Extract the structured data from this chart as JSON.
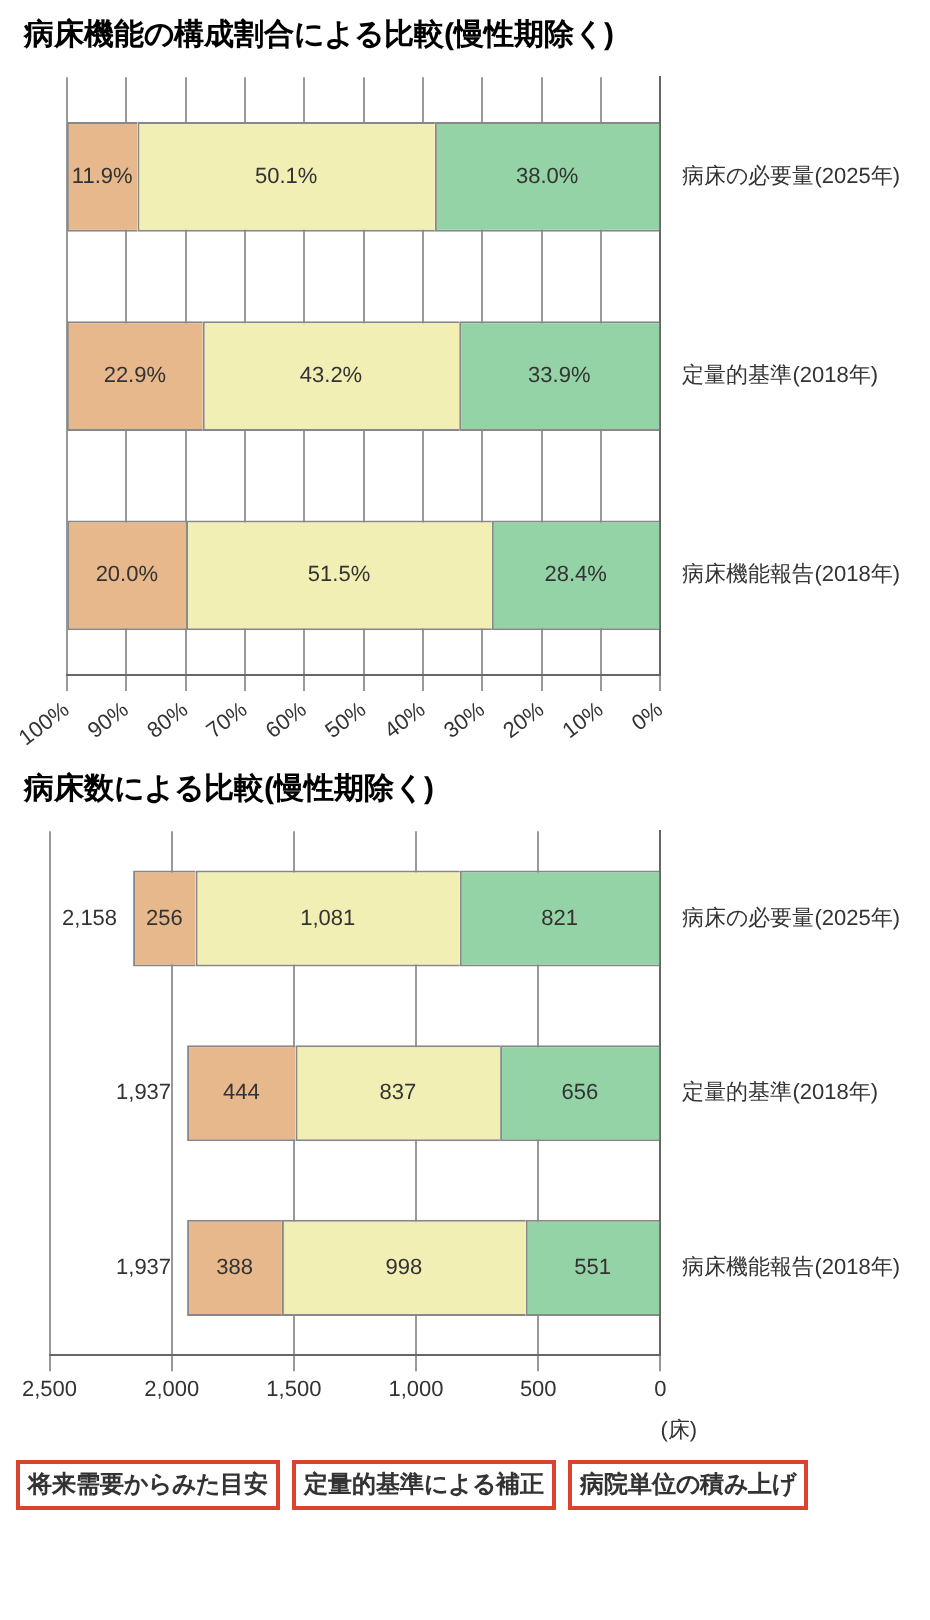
{
  "chart_data": [
    {
      "type": "bar",
      "title": "病床機能の構成割合による比較(慢性期除く)",
      "orientation": "horizontal",
      "stacked": true,
      "categories": [
        "病床の必要量(2025年)",
        "定量的基準(2018年)",
        "病床機能報告(2018年)"
      ],
      "series": [
        {
          "color": "#93d3a6",
          "values": [
            38.0,
            33.9,
            28.4
          ],
          "value_labels": [
            "38.0%",
            "33.9%",
            "28.4%"
          ]
        },
        {
          "color": "#f2efb4",
          "values": [
            50.1,
            43.2,
            51.5
          ],
          "value_labels": [
            "50.1%",
            "43.2%",
            "51.5%"
          ]
        },
        {
          "color": "#e6b88c",
          "values": [
            11.9,
            22.9,
            20.0
          ],
          "value_labels": [
            "11.9%",
            "22.9%",
            "20.0%"
          ]
        }
      ],
      "xlim": [
        100,
        0
      ],
      "xticks": [
        {
          "value": 100,
          "label": "100%"
        },
        {
          "value": 90,
          "label": "90%"
        },
        {
          "value": 80,
          "label": "80%"
        },
        {
          "value": 70,
          "label": "70%"
        },
        {
          "value": 60,
          "label": "60%"
        },
        {
          "value": 50,
          "label": "50%"
        },
        {
          "value": 40,
          "label": "40%"
        },
        {
          "value": 30,
          "label": "30%"
        },
        {
          "value": 20,
          "label": "20%"
        },
        {
          "value": 10,
          "label": "10%"
        },
        {
          "value": 0,
          "label": "0%"
        }
      ],
      "grid": "x",
      "legend": false
    },
    {
      "type": "bar",
      "title": "病床数による比較(慢性期除く)",
      "xlabel": "(床)",
      "orientation": "horizontal",
      "stacked": true,
      "categories": [
        "病床の必要量(2025年)",
        "定量的基準(2018年)",
        "病床機能報告(2018年)"
      ],
      "series": [
        {
          "color": "#93d3a6",
          "values": [
            821,
            656,
            551
          ],
          "value_labels": [
            "821",
            "656",
            "551"
          ]
        },
        {
          "color": "#f2efb4",
          "values": [
            1081,
            837,
            998
          ],
          "value_labels": [
            "1,081",
            "837",
            "998"
          ]
        },
        {
          "color": "#e6b88c",
          "values": [
            256,
            444,
            388
          ],
          "value_labels": [
            "256",
            "444",
            "388"
          ]
        }
      ],
      "totals": [
        "2,158",
        "1,937",
        "1,937"
      ],
      "xlim": [
        2500,
        0
      ],
      "xticks": [
        {
          "value": 2500,
          "label": "2,500"
        },
        {
          "value": 2000,
          "label": "2,000"
        },
        {
          "value": 1500,
          "label": "1,500"
        },
        {
          "value": 1000,
          "label": "1,000"
        },
        {
          "value": 500,
          "label": "500"
        },
        {
          "value": 0,
          "label": "0"
        }
      ],
      "grid": "x",
      "legend": false,
      "annotations": [
        "将来需要からみた目安",
        "定量的基準による補正",
        "病院単位の積み上げ"
      ]
    }
  ]
}
